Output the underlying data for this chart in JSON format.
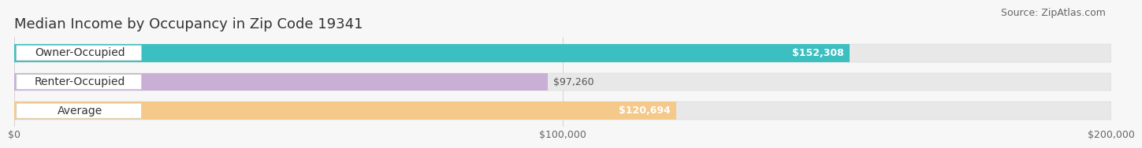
{
  "title": "Median Income by Occupancy in Zip Code 19341",
  "source": "Source: ZipAtlas.com",
  "categories": [
    "Owner-Occupied",
    "Renter-Occupied",
    "Average"
  ],
  "values": [
    152308,
    97260,
    120694
  ],
  "bar_colors": [
    "#3bbfc0",
    "#c9aed6",
    "#f5c98a"
  ],
  "value_labels": [
    "$152,308",
    "$97,260",
    "$120,694"
  ],
  "value_label_inside": [
    true,
    false,
    true
  ],
  "value_label_colors": [
    "white",
    "#555555",
    "white"
  ],
  "xlim": [
    0,
    200000
  ],
  "xtick_values": [
    0,
    100000,
    200000
  ],
  "xtick_labels": [
    "$0",
    "$100,000",
    "$200,000"
  ],
  "background_color": "#f7f7f7",
  "bar_bg_color": "#e8e8e8",
  "title_fontsize": 13,
  "source_fontsize": 9,
  "label_fontsize": 10,
  "value_fontsize": 9,
  "tick_fontsize": 9
}
